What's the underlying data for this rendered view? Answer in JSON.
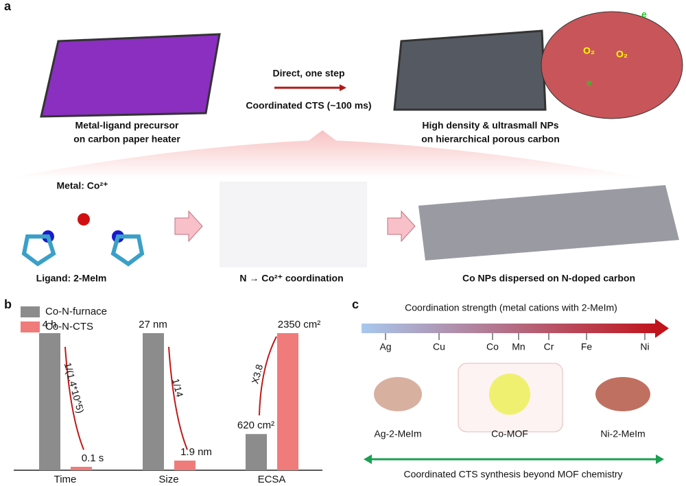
{
  "panel_a": {
    "label": "a",
    "arrow_top": "Direct, one step",
    "arrow_bottom": "Coordinated CTS (~100 ms)",
    "left_caption": [
      "Metal-ligand precursor",
      "on carbon paper heater"
    ],
    "right_caption": [
      "High density & ultrasmall NPs",
      "on hierarchical porous carbon"
    ],
    "inset": {
      "o2_1": "O₂",
      "o2_2": "O₂",
      "e_1": "e",
      "e_2": "e"
    },
    "metal": "Metal: Co²⁺",
    "ligand": "Ligand: 2-MeIm",
    "middle": "N → Co²⁺ coordination",
    "right": "Co NPs dispersed on N-doped carbon"
  },
  "panel_b": {
    "label": "b",
    "categories": [
      "Time",
      "Size",
      "ECSA"
    ],
    "series": [
      {
        "name": "Co-N-furnace",
        "color": "#8c8c8c",
        "values": [
          4,
          27,
          620
        ],
        "value_labels": [
          "4 h",
          "27 nm",
          "620 cm²"
        ]
      },
      {
        "name": "Co-N-CTS",
        "color": "#f07b7b",
        "values": [
          0.1,
          1.9,
          2350
        ],
        "value_labels": [
          "0.1 s",
          "1.9 nm",
          "2350 cm²"
        ]
      }
    ],
    "arrow_labels": [
      "1/(1.4*10^5)",
      "1/14",
      "X3.8"
    ]
  },
  "panel_c": {
    "label": "c",
    "title": "Coordination strength (metal cations with 2-MeIm)",
    "metals": [
      "Ag",
      "Cu",
      "Co",
      "Mn",
      "Cr",
      "Fe",
      "Ni"
    ],
    "structures": [
      "Ag-2-MeIm",
      "Co-MOF",
      "Ni-2-MeIm"
    ],
    "footer": "Coordinated CTS synthesis beyond MOF chemistry"
  }
}
